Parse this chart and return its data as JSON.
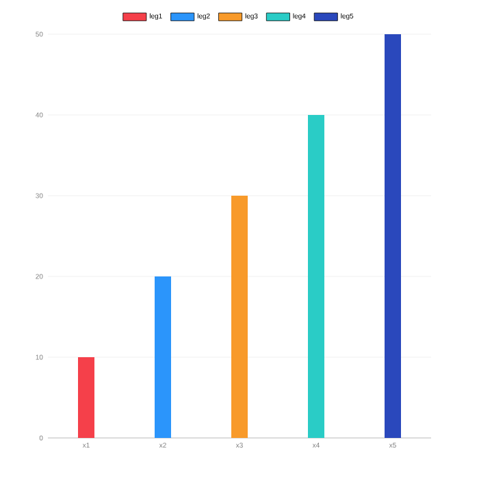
{
  "chart_data": {
    "type": "bar",
    "categories": [
      "x1",
      "x2",
      "x3",
      "x4",
      "x5"
    ],
    "series": [
      {
        "name": "leg1",
        "color": "#f5404a",
        "values": [
          10,
          null,
          null,
          null,
          null
        ]
      },
      {
        "name": "leg2",
        "color": "#2b95fb",
        "values": [
          null,
          20,
          null,
          null,
          null
        ]
      },
      {
        "name": "leg3",
        "color": "#f89a2a",
        "values": [
          null,
          null,
          30,
          null,
          null
        ]
      },
      {
        "name": "leg4",
        "color": "#2accc6",
        "values": [
          null,
          null,
          null,
          40,
          null
        ]
      },
      {
        "name": "leg5",
        "color": "#2a48bc",
        "values": [
          null,
          null,
          null,
          null,
          50
        ]
      }
    ],
    "ylim": [
      0,
      50
    ],
    "yticks": [
      0,
      10,
      20,
      30,
      40,
      50
    ],
    "grid": "y",
    "legend": "top"
  }
}
